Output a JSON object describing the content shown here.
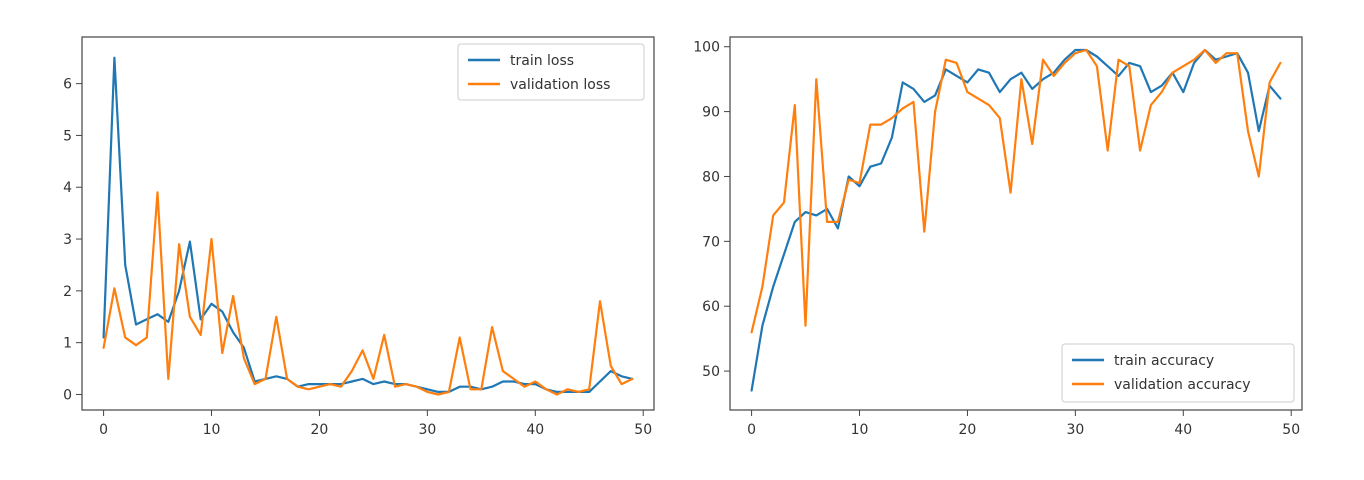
{
  "chart_data": [
    {
      "type": "line",
      "title": "",
      "xlabel": "",
      "ylabel": "",
      "xlim": [
        -2,
        51
      ],
      "ylim": [
        -0.3,
        6.9
      ],
      "xticks": [
        0,
        10,
        20,
        30,
        40,
        50
      ],
      "yticks": [
        0,
        1,
        2,
        3,
        4,
        5,
        6
      ],
      "legend_position": "top-right",
      "grid": false,
      "x": [
        0,
        1,
        2,
        3,
        4,
        5,
        6,
        7,
        8,
        9,
        10,
        11,
        12,
        13,
        14,
        15,
        16,
        17,
        18,
        19,
        20,
        21,
        22,
        23,
        24,
        25,
        26,
        27,
        28,
        29,
        30,
        31,
        32,
        33,
        34,
        35,
        36,
        37,
        38,
        39,
        40,
        41,
        42,
        43,
        44,
        45,
        46,
        47,
        48,
        49
      ],
      "series": [
        {
          "name": "train loss",
          "color": "#1f77b4",
          "values": [
            1.1,
            6.5,
            2.5,
            1.35,
            1.45,
            1.55,
            1.4,
            2.0,
            2.95,
            1.45,
            1.75,
            1.6,
            1.2,
            0.9,
            0.25,
            0.3,
            0.35,
            0.3,
            0.15,
            0.2,
            0.2,
            0.2,
            0.2,
            0.25,
            0.3,
            0.2,
            0.25,
            0.2,
            0.2,
            0.15,
            0.1,
            0.05,
            0.05,
            0.15,
            0.15,
            0.1,
            0.15,
            0.25,
            0.25,
            0.2,
            0.2,
            0.1,
            0.05,
            0.05,
            0.05,
            0.05,
            0.25,
            0.45,
            0.35,
            0.3
          ]
        },
        {
          "name": "validation loss",
          "color": "#ff7f0e",
          "values": [
            0.9,
            2.05,
            1.1,
            0.95,
            1.1,
            3.9,
            0.3,
            2.9,
            1.5,
            1.15,
            3.0,
            0.8,
            1.9,
            0.7,
            0.2,
            0.3,
            1.5,
            0.3,
            0.15,
            0.1,
            0.15,
            0.2,
            0.15,
            0.45,
            0.85,
            0.3,
            1.15,
            0.15,
            0.2,
            0.15,
            0.05,
            0.0,
            0.05,
            1.1,
            0.1,
            0.1,
            1.3,
            0.45,
            0.3,
            0.15,
            0.25,
            0.1,
            0.0,
            0.1,
            0.05,
            0.1,
            1.8,
            0.55,
            0.2,
            0.3
          ]
        }
      ]
    },
    {
      "type": "line",
      "title": "",
      "xlabel": "",
      "ylabel": "",
      "xlim": [
        -2,
        51
      ],
      "ylim": [
        44,
        101.5
      ],
      "xticks": [
        0,
        10,
        20,
        30,
        40,
        50
      ],
      "yticks": [
        50,
        60,
        70,
        80,
        90,
        100
      ],
      "legend_position": "bottom-right",
      "grid": false,
      "x": [
        0,
        1,
        2,
        3,
        4,
        5,
        6,
        7,
        8,
        9,
        10,
        11,
        12,
        13,
        14,
        15,
        16,
        17,
        18,
        19,
        20,
        21,
        22,
        23,
        24,
        25,
        26,
        27,
        28,
        29,
        30,
        31,
        32,
        33,
        34,
        35,
        36,
        37,
        38,
        39,
        40,
        41,
        42,
        43,
        44,
        45,
        46,
        47,
        48,
        49
      ],
      "series": [
        {
          "name": "train accuracy",
          "color": "#1f77b4",
          "values": [
            47,
            57,
            63,
            68,
            73,
            74.5,
            74,
            75,
            72,
            80,
            78.5,
            81.5,
            82,
            86,
            94.5,
            93.5,
            91.5,
            92.5,
            96.5,
            95.5,
            94.5,
            96.5,
            96,
            93,
            95,
            96,
            93.5,
            95,
            96,
            98,
            99.5,
            99.5,
            98.5,
            97,
            95.5,
            97.5,
            97,
            93,
            94,
            96,
            93,
            97.5,
            99.5,
            98,
            98.5,
            99,
            96,
            87,
            94,
            92
          ]
        },
        {
          "name": "validation accuracy",
          "color": "#ff7f0e",
          "values": [
            56,
            63,
            74,
            76,
            91,
            57,
            95,
            73,
            73,
            79.5,
            79,
            88,
            88,
            89,
            90.5,
            91.5,
            71.5,
            90,
            98,
            97.5,
            93,
            92,
            91,
            89,
            77.5,
            95,
            85,
            98,
            95.5,
            97.5,
            99,
            99.5,
            97,
            84,
            98,
            97,
            84,
            91,
            93,
            96,
            97,
            98,
            99.5,
            97.5,
            99,
            99,
            87,
            80,
            94.5,
            97.5
          ]
        }
      ]
    }
  ]
}
